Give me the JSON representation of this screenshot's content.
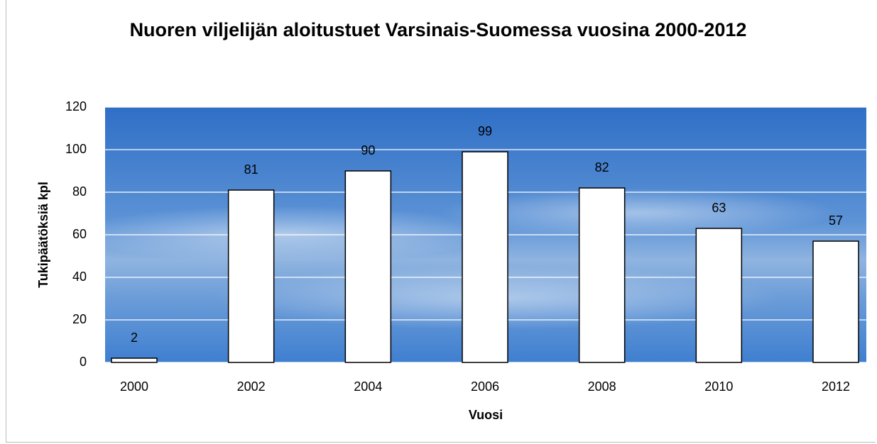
{
  "chart_data": {
    "type": "bar",
    "title": "Nuoren viljelijän aloitustuet Varsinais-Suomessa vuosina 2000-2012",
    "x_label": "Vuosi",
    "y_label": "Tukipäätöksiä kpl",
    "categories": [
      "2000",
      "2002",
      "2004",
      "2006",
      "2008",
      "2010",
      "2012"
    ],
    "values": [
      2,
      81,
      90,
      99,
      82,
      63,
      57
    ],
    "color": "#ffffff",
    "ylim": [
      0,
      120
    ],
    "yticks": [
      0,
      20,
      40,
      60,
      80,
      100,
      120
    ],
    "grid": true
  }
}
